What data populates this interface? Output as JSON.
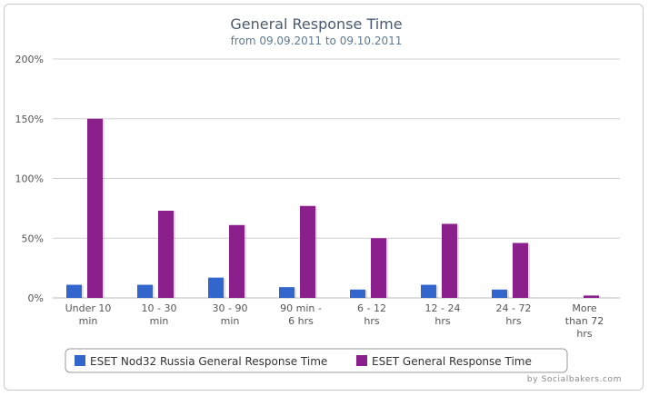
{
  "chart_data": {
    "type": "bar",
    "title": "General Response Time",
    "subtitle": "from 09.09.2011 to 09.10.2011",
    "categories": [
      [
        "Under 10",
        "min"
      ],
      [
        "10 - 30",
        "min"
      ],
      [
        "30 - 90",
        "min"
      ],
      [
        "90 min -",
        "6 hrs"
      ],
      [
        "6 - 12",
        "hrs"
      ],
      [
        "12 - 24",
        "hrs"
      ],
      [
        "24 - 72",
        "hrs"
      ],
      [
        "More",
        "than 72",
        "hrs"
      ]
    ],
    "series": [
      {
        "name": "ESET Nod32 Russia General Response Time",
        "color": "#3366cc",
        "values": [
          11,
          11,
          17,
          9,
          7,
          11,
          7,
          0
        ]
      },
      {
        "name": "ESET General Response Time",
        "color": "#8b1f8b",
        "values": [
          150,
          73,
          61,
          77,
          50,
          62,
          46,
          2
        ]
      }
    ],
    "ylim": [
      0,
      200
    ],
    "yticks": [
      0,
      50,
      100,
      150,
      200
    ],
    "ytick_suffix": "%",
    "grid": true,
    "legend": "bottom-center"
  },
  "credit": "by Socialbakers.com"
}
